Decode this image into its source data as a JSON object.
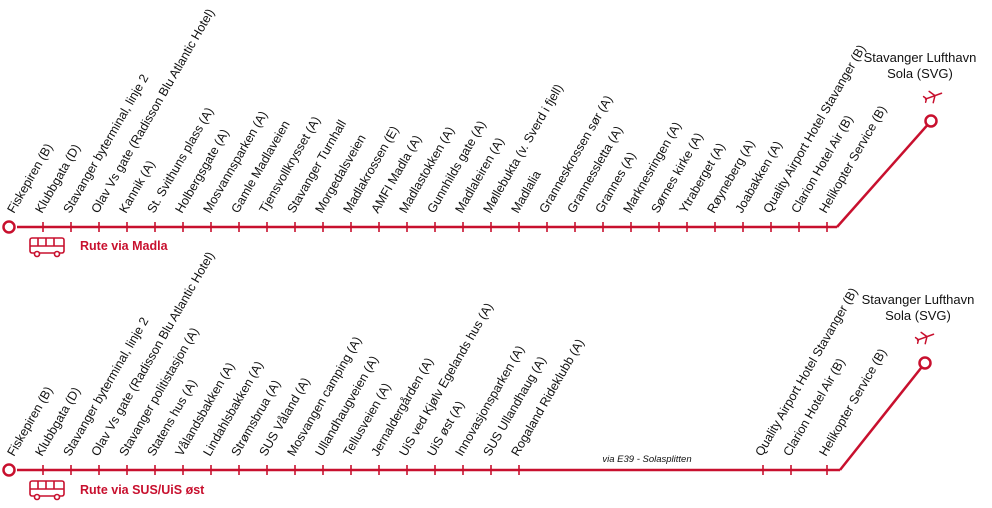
{
  "colors": {
    "route": "#c8102e",
    "text": "#111111"
  },
  "routes": [
    {
      "name": "Rute via Madla",
      "icon": "bus-icon",
      "destination": [
        "Stavanger Lufthavn",
        "Sola (SVG)"
      ],
      "destination_icon": "airplane-icon",
      "via_note": "",
      "stops": [
        "Fiskepiren (B)",
        "Klubbgata (D)",
        "Stavanger byterminal, linje 2",
        "Olav Vs gate (Radisson Blu Atlantic Hotel)",
        "Kannik (A)",
        "St. Svithuns plass (A)",
        "Holbergsgate (A)",
        "Mosvannsparken (A)",
        "Gamle Madlaveien",
        "Tjensvollkrysset (A)",
        "Stavanger Turnhall",
        "Morgedalsveien",
        "Madlakrossen (E)",
        "AMFI Madla (A)",
        "Madlastokken (A)",
        "Gunnhilds gate (A)",
        "Madlaleiren (A)",
        "Møllebukta (v. Sverd i fjell)",
        "Madlalia",
        "Granneskrossen sør (A)",
        "Grannessletta (A)",
        "Grannes (A)",
        "Marknesringen (A)",
        "Sørnes kirke (A)",
        "Ytraberget (A)",
        "Røyneberg (A)",
        "Joabakken (A)",
        "Quality Airport Hotel Stavanger (B)",
        "Clarion Hotel Air (B)",
        "Helikopter Service (B)"
      ]
    },
    {
      "name": "Rute via SUS/UiS øst",
      "icon": "bus-icon",
      "destination": [
        "Stavanger Lufthavn",
        "Sola (SVG)"
      ],
      "destination_icon": "airplane-icon",
      "via_note": "via E39 - Solasplitten",
      "stops": [
        "Fiskepiren (B)",
        "Klubbgata (D)",
        "Stavanger byterminal, linje 2",
        "Olav Vs gate (Radisson Blu Atlantic Hotel)",
        "Stavanger politistasjon (A)",
        "Statens hus (A)",
        "Vålandsbakken (A)",
        "Lindahlsbakken (A)",
        "Strømsbrua (A)",
        "SUS Våland (A)",
        "Mosvangen camping (A)",
        "Ullandhaugveien (A)",
        "Tellusveien (A)",
        "Jernaldergården (A)",
        "UiS ved Kjølv Egelands hus (A)",
        "UiS øst (A)",
        "Innovasjonsparken (A)",
        "SUS Ullandhaug (A)",
        "Rogaland Rideklubb (A)",
        "Quality Airport Hotel Stavanger (B)",
        "Clarion Hotel Air (B)",
        "Helikopter Service (B)"
      ]
    }
  ]
}
